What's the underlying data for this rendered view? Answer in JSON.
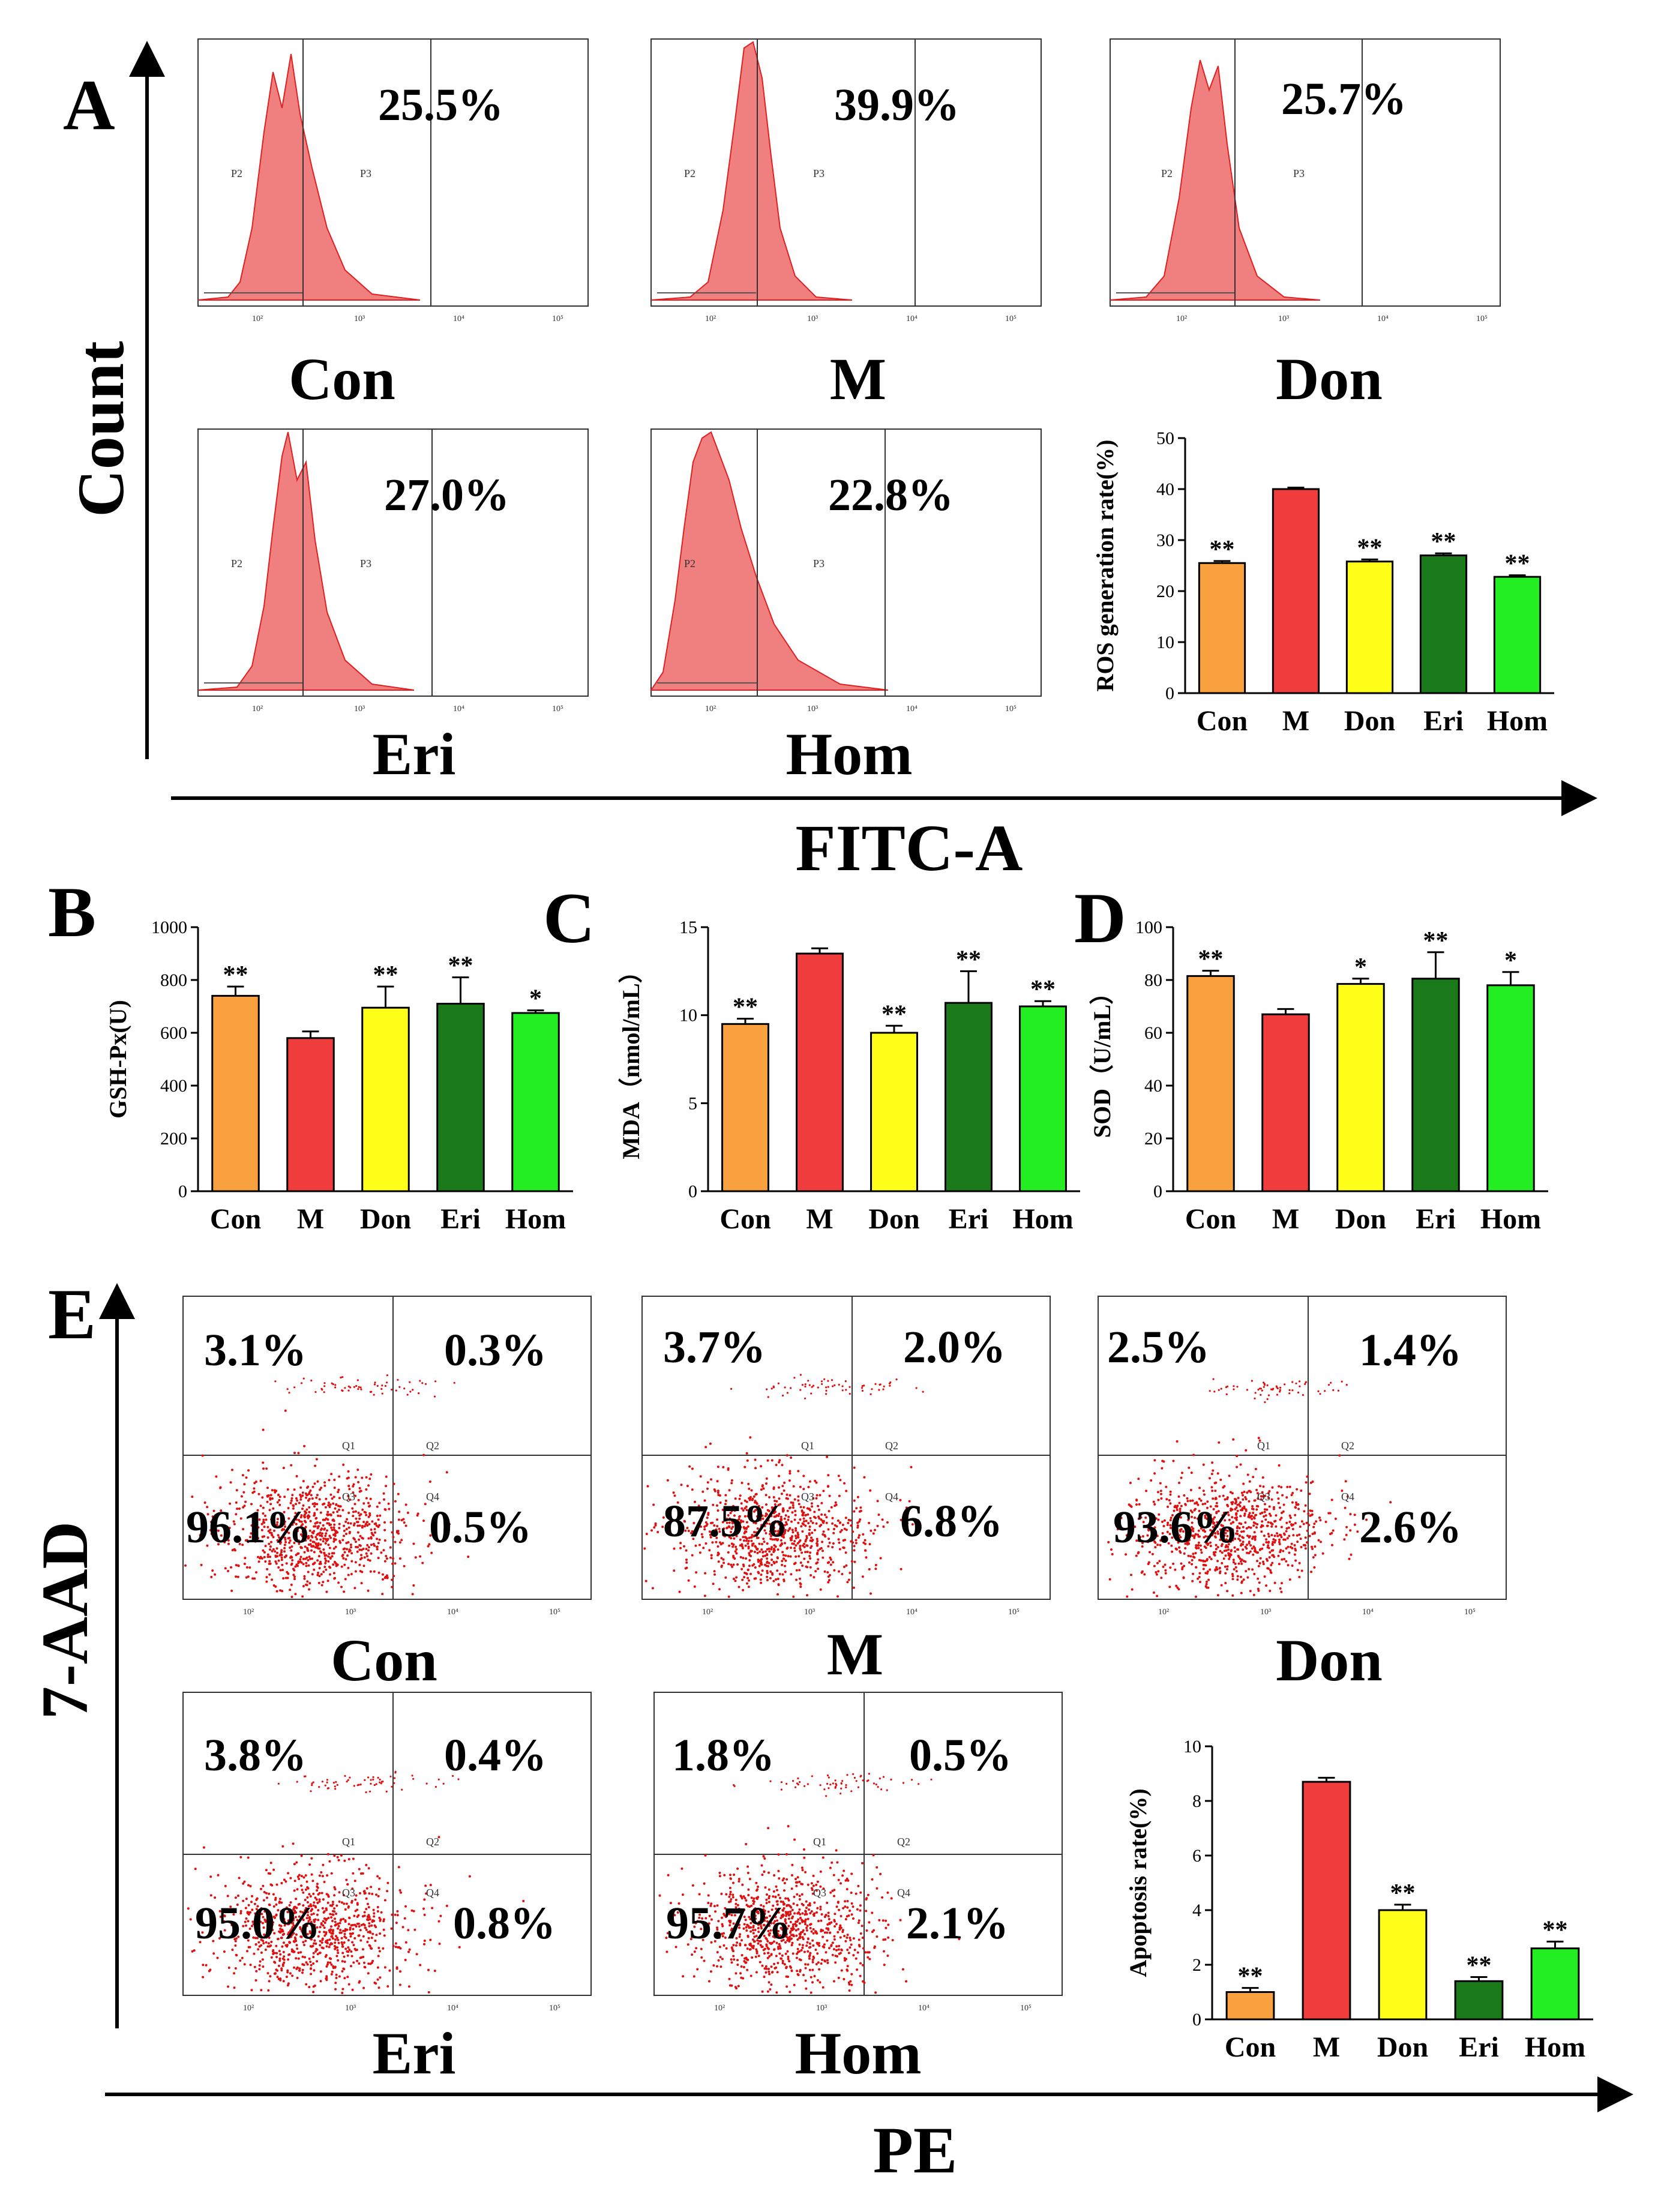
{
  "panels": {
    "A": {
      "label": "A",
      "y_axis_title": "Count",
      "x_axis_title": "FITC-A",
      "gates": [
        "P2",
        "P3"
      ],
      "tick_labels": [
        "10²",
        "10³",
        "10⁴",
        "10⁵"
      ],
      "histograms": [
        {
          "group": "Con",
          "percent": "25.5%"
        },
        {
          "group": "M",
          "percent": "39.9%"
        },
        {
          "group": "Don",
          "percent": "25.7%"
        },
        {
          "group": "Eri",
          "percent": "27.0%"
        },
        {
          "group": "Hom",
          "percent": "22.8%"
        }
      ]
    },
    "B": {
      "label": "B"
    },
    "C": {
      "label": "C"
    },
    "D": {
      "label": "D"
    },
    "E": {
      "label": "E",
      "y_axis_title": "7-AAD",
      "x_axis_title": "PE",
      "quadrant_names": [
        "Q1",
        "Q2",
        "Q3",
        "Q4"
      ],
      "tick_labels": [
        "10²",
        "10³",
        "10⁴",
        "10⁵"
      ],
      "dotplots": [
        {
          "group": "Con",
          "q1": "3.1%",
          "q2": "0.3%",
          "q3": "96.1%",
          "q4": "0.5%"
        },
        {
          "group": "M",
          "q1": "3.7%",
          "q2": "2.0%",
          "q3": "87.5%",
          "q4": "6.8%"
        },
        {
          "group": "Don",
          "q1": "2.5%",
          "q2": "1.4%",
          "q3": "93.6%",
          "q4": "2.6%"
        },
        {
          "group": "Eri",
          "q1": "3.8%",
          "q2": "0.4%",
          "q3": "95.0%",
          "q4": "0.8%"
        },
        {
          "group": "Hom",
          "q1": "1.8%",
          "q2": "0.5%",
          "q3": "95.7%",
          "q4": "2.1%"
        }
      ]
    }
  },
  "colors": {
    "Con": "#f9a03f",
    "M": "#f03c3c",
    "Don": "#ffff1a",
    "Eri": "#1a7a1a",
    "Hom": "#22ee22",
    "histogram_fill": "#f08080",
    "dots": "#e01010"
  },
  "chart_data": [
    {
      "id": "A-ros",
      "type": "bar",
      "categories": [
        "Con",
        "M",
        "Don",
        "Eri",
        "Hom"
      ],
      "values": [
        25.5,
        40.0,
        25.8,
        27.0,
        22.8
      ],
      "errors": [
        0.4,
        0.3,
        0.4,
        0.4,
        0.3
      ],
      "significance": [
        "**",
        "",
        "**",
        "**",
        "**"
      ],
      "ylabel": "ROS generation rate(%)",
      "ylim": [
        0,
        50
      ],
      "yticks": [
        0,
        10,
        20,
        30,
        40,
        50
      ],
      "title": "",
      "xlabel": ""
    },
    {
      "id": "B-gsh",
      "type": "bar",
      "categories": [
        "Con",
        "M",
        "Don",
        "Eri",
        "Hom"
      ],
      "values": [
        740,
        580,
        695,
        710,
        675
      ],
      "errors": [
        35,
        25,
        80,
        100,
        10
      ],
      "significance": [
        "**",
        "",
        "**",
        "**",
        "*"
      ],
      "ylabel": "GSH-Px(U)",
      "ylim": [
        0,
        1000
      ],
      "yticks": [
        0,
        200,
        400,
        600,
        800,
        1000
      ],
      "title": "",
      "xlabel": ""
    },
    {
      "id": "C-mda",
      "type": "bar",
      "categories": [
        "Con",
        "M",
        "Don",
        "Eri",
        "Hom"
      ],
      "values": [
        9.5,
        13.5,
        9.0,
        10.7,
        10.5
      ],
      "errors": [
        0.3,
        0.3,
        0.4,
        1.8,
        0.3
      ],
      "significance": [
        "**",
        "",
        "**",
        "**",
        "**"
      ],
      "ylabel": "MDA（nmol/mL）",
      "ylim": [
        0,
        15
      ],
      "yticks": [
        0,
        5,
        10,
        15
      ],
      "title": "",
      "xlabel": ""
    },
    {
      "id": "D-sod",
      "type": "bar",
      "categories": [
        "Con",
        "M",
        "Don",
        "Eri",
        "Hom"
      ],
      "values": [
        81.5,
        67,
        78.5,
        80.5,
        78
      ],
      "errors": [
        2,
        2,
        2,
        10,
        5
      ],
      "significance": [
        "**",
        "",
        "*",
        "**",
        "*"
      ],
      "ylabel": "SOD（U/mL）",
      "ylim": [
        0,
        100
      ],
      "yticks": [
        0,
        20,
        40,
        60,
        80,
        100
      ],
      "title": "",
      "xlabel": ""
    },
    {
      "id": "E-apoptosis",
      "type": "bar",
      "categories": [
        "Con",
        "M",
        "Don",
        "Eri",
        "Hom"
      ],
      "values": [
        1.0,
        8.7,
        4.0,
        1.4,
        2.6
      ],
      "errors": [
        0.15,
        0.15,
        0.2,
        0.15,
        0.25
      ],
      "significance": [
        "**",
        "",
        "**",
        "**",
        "**"
      ],
      "ylabel": "Apoptosis rate(%)",
      "ylim": [
        0,
        10
      ],
      "yticks": [
        0,
        2,
        4,
        6,
        8,
        10
      ],
      "title": "",
      "xlabel": ""
    }
  ]
}
